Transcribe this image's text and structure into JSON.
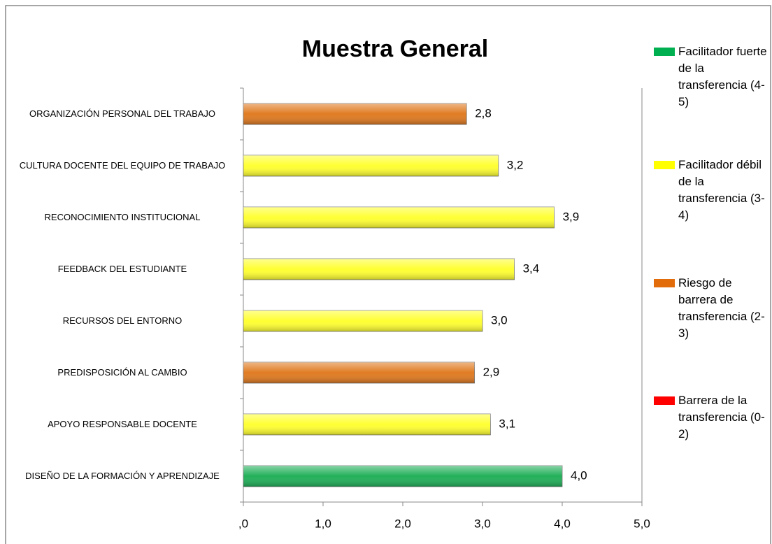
{
  "chart_data": {
    "type": "barh",
    "title": "Muestra General",
    "categories": [
      "ORGANIZACIÓN PERSONAL DEL TRABAJO",
      "CULTURA DOCENTE DEL EQUIPO DE TRABAJO",
      "RECONOCIMIENTO INSTITUCIONAL",
      "FEEDBACK DEL ESTUDIANTE",
      "RECURSOS DEL ENTORNO",
      "PREDISPOSICIÓN AL CAMBIO",
      "APOYO RESPONSABLE DOCENTE",
      "DISEÑO DE LA FORMACIÓN Y APRENDIZAJE"
    ],
    "values": [
      2.8,
      3.2,
      3.9,
      3.4,
      3.0,
      2.9,
      3.1,
      4.0
    ],
    "value_labels": [
      "2,8",
      "3,2",
      "3,9",
      "3,4",
      "3,0",
      "2,9",
      "3,1",
      "4,0"
    ],
    "colors": [
      "#e07b22",
      "#ffff33",
      "#ffff33",
      "#ffff33",
      "#ffff33",
      "#e07b22",
      "#ffff33",
      "#22b05a"
    ],
    "xlim": [
      0,
      5
    ],
    "xticks": [
      {
        "value": 0,
        "label": ",0"
      },
      {
        "value": 1,
        "label": "1,0"
      },
      {
        "value": 2,
        "label": "2,0"
      },
      {
        "value": 3,
        "label": "3,0"
      },
      {
        "value": 4,
        "label": "4,0"
      },
      {
        "value": 5,
        "label": "5,0"
      }
    ],
    "legend": [
      {
        "name": "Facilitador fuerte de la transferencia (4-5)",
        "color": "#00b050"
      },
      {
        "name": "Facilitador débil de la transferencia (3-4)",
        "color": "#ffff00"
      },
      {
        "name": "Riesgo de barrera de transferencia (2-3)",
        "color": "#e36c0a"
      },
      {
        "name": "Barrera de la transferencia (0-2)",
        "color": "#ff0000"
      }
    ]
  }
}
